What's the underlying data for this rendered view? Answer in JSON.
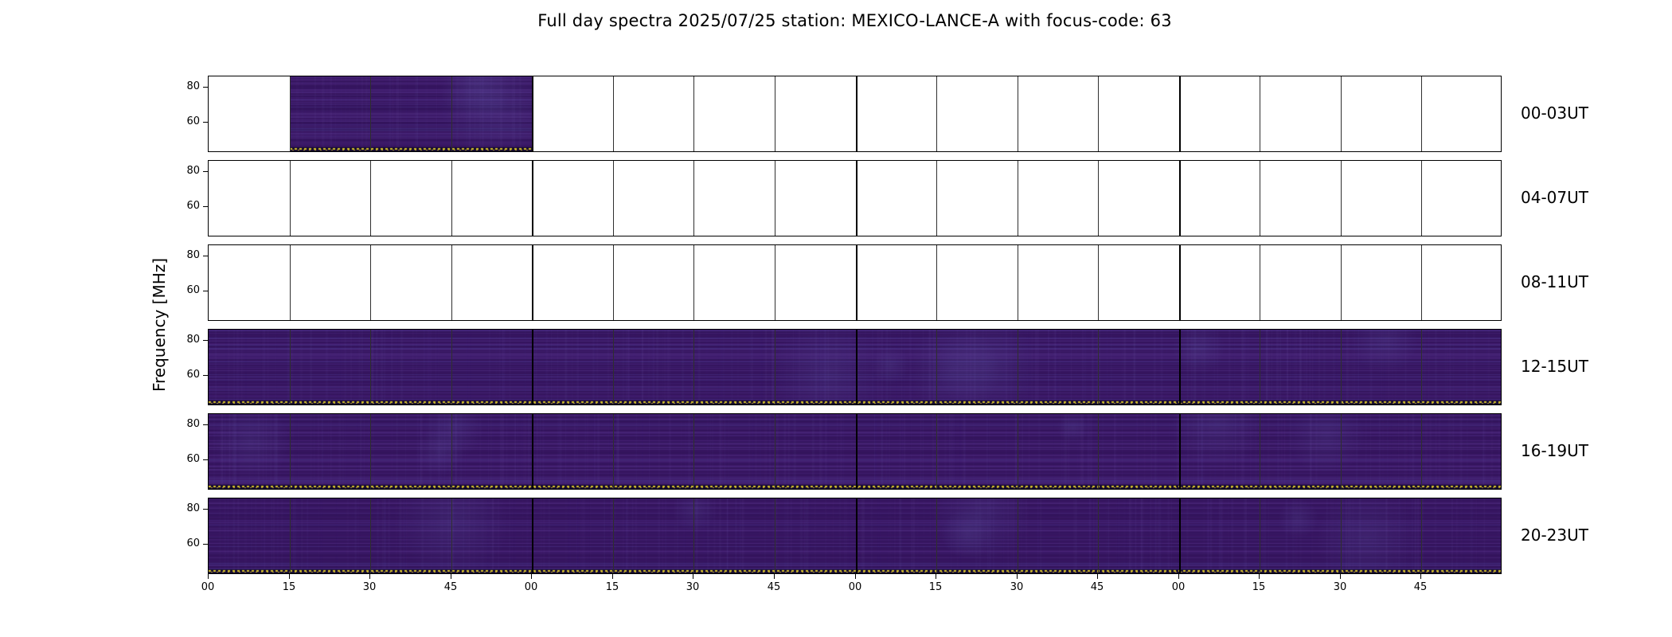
{
  "title": "Full day spectra 2025/07/25 station: MEXICO-LANCE-A with focus-code: 63",
  "y_axis_label": "Frequency [MHz]",
  "y_tick_labels": [
    "80",
    "60"
  ],
  "x_tick_labels": [
    "00",
    "15",
    "30",
    "45",
    "00",
    "15",
    "30",
    "45",
    "00",
    "15",
    "30",
    "45",
    "00",
    "15",
    "30",
    "45"
  ],
  "colors": {
    "spectrogram_base": "#3a1765",
    "spectrogram_streak_purple": "#7d5fc3",
    "spectrogram_streak_blue": "#5f6ecd",
    "bottom_marker_yellow": "#d9c42c",
    "grid_line": "#000000",
    "background": "#ffffff"
  },
  "chart_data": {
    "type": "heatmap",
    "title": "Full day spectra 2025/07/25 station: MEXICO-LANCE-A with focus-code: 63",
    "ylabel": "Frequency [MHz]",
    "y_ticks_mhz": [
      60,
      80
    ],
    "x_tick_labels_minutes": [
      "00",
      "15",
      "30",
      "45",
      "00",
      "15",
      "30",
      "45",
      "00",
      "15",
      "30",
      "45",
      "00",
      "15",
      "30",
      "45"
    ],
    "hours_per_row": 4,
    "segments_per_row": 16,
    "segment_duration_min": 15,
    "legend_position": "right",
    "grid": true,
    "rows": [
      {
        "label": "00-03UT",
        "coverage": "partial",
        "segments_with_data": [
          1,
          2,
          3
        ],
        "data_start": "00:15",
        "data_end": "01:00"
      },
      {
        "label": "04-07UT",
        "coverage": "none",
        "segments_with_data": []
      },
      {
        "label": "08-11UT",
        "coverage": "none",
        "segments_with_data": []
      },
      {
        "label": "12-15UT",
        "coverage": "full",
        "segments_with_data": [
          0,
          1,
          2,
          3,
          4,
          5,
          6,
          7,
          8,
          9,
          10,
          11,
          12,
          13,
          14,
          15
        ]
      },
      {
        "label": "16-19UT",
        "coverage": "full",
        "segments_with_data": [
          0,
          1,
          2,
          3,
          4,
          5,
          6,
          7,
          8,
          9,
          10,
          11,
          12,
          13,
          14,
          15
        ]
      },
      {
        "label": "20-23UT",
        "coverage": "full",
        "segments_with_data": [
          0,
          1,
          2,
          3,
          4,
          5,
          6,
          7,
          8,
          9,
          10,
          11,
          12,
          13,
          14,
          15
        ]
      }
    ]
  }
}
